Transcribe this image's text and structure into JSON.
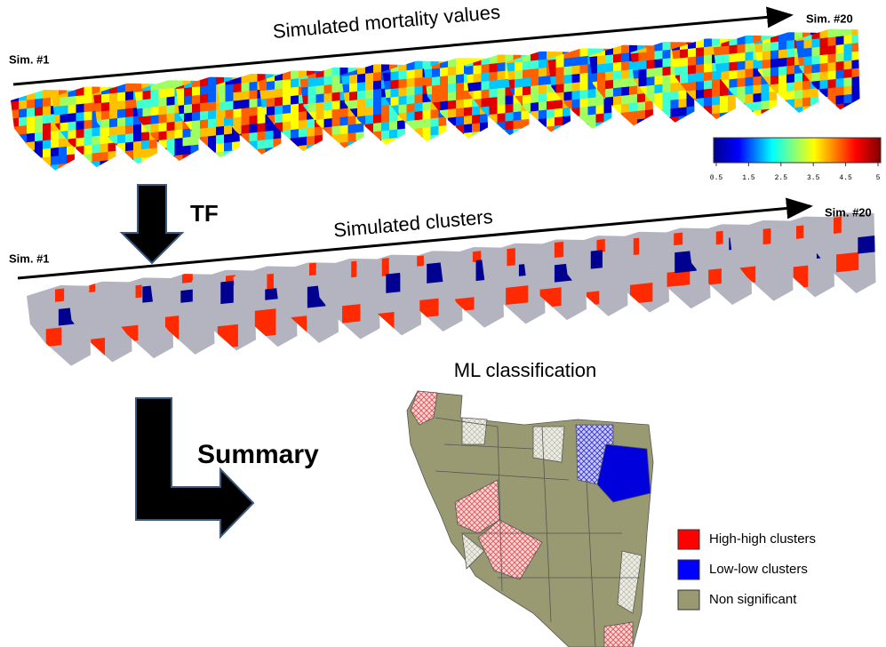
{
  "top_row": {
    "title": "Simulated mortality values",
    "start_label": "Sim. #1",
    "end_label": "Sim. #20"
  },
  "colorbar": {
    "ticks": [
      "0.5",
      "1.5",
      "2.5",
      "3.5",
      "4.5",
      "5"
    ]
  },
  "arrow1_label": "TF",
  "middle_row": {
    "title": "Simulated clusters",
    "start_label": "Sim. #1",
    "end_label": "Sim. #20"
  },
  "arrow2_label": "Summary",
  "map": {
    "title": "ML classification"
  },
  "legend": [
    {
      "label": "High-high clusters"
    },
    {
      "label": "Low-low clusters"
    },
    {
      "label": "Non significant"
    }
  ]
}
